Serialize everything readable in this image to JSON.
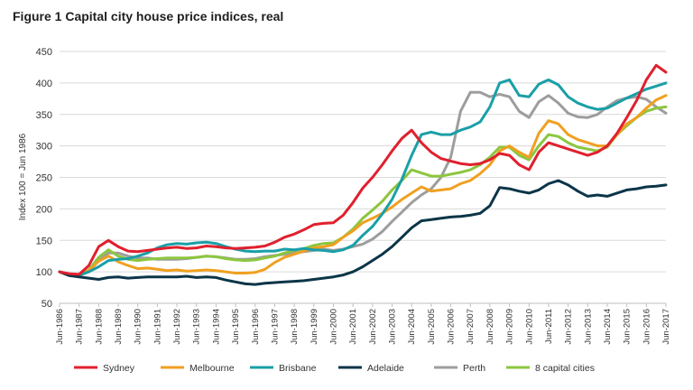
{
  "chart_data": {
    "type": "line",
    "title": "Figure 1 Capital city house price indices, real",
    "ylabel": "Index 100 = Jun 1986",
    "xlabel": "",
    "ylim": [
      50,
      450
    ],
    "yticks": [
      50,
      100,
      150,
      200,
      250,
      300,
      350,
      400,
      450
    ],
    "grid": true,
    "legend_position": "bottom",
    "x_tick_labels": [
      "Jun-1986",
      "Jun-1987",
      "Jun-1988",
      "Jun-1989",
      "Jun-1990",
      "Jun-1991",
      "Jun-1992",
      "Jun-1993",
      "Jun-1994",
      "Jun-1995",
      "Jun-1996",
      "Jun-1997",
      "Jun-1998",
      "Jun-1999",
      "Jun-2000",
      "Jun-2001",
      "Jun-2002",
      "Jun-2003",
      "Jun-2004",
      "Jun-2005",
      "Jun-2006",
      "Jun-2007",
      "Jun-2008",
      "Jun-2009",
      "Jun-2010",
      "Jun-2011",
      "Jun-2012",
      "Jun-2013",
      "Jun-2014",
      "Jun-2015",
      "Jun-2016",
      "Jun-2017"
    ],
    "x": [
      1986.5,
      1987,
      1987.5,
      1988,
      1988.5,
      1989,
      1989.5,
      1990,
      1990.5,
      1991,
      1991.5,
      1992,
      1992.5,
      1993,
      1993.5,
      1994,
      1994.5,
      1995,
      1995.5,
      1996,
      1996.5,
      1997,
      1997.5,
      1998,
      1998.5,
      1999,
      1999.5,
      2000,
      2000.5,
      2001,
      2001.5,
      2002,
      2002.5,
      2003,
      2003.5,
      2004,
      2004.5,
      2005,
      2005.5,
      2006,
      2006.5,
      2007,
      2007.5,
      2008,
      2008.5,
      2009,
      2009.5,
      2010,
      2010.5,
      2011,
      2011.5,
      2012,
      2012.5,
      2013,
      2013.5,
      2014,
      2014.5,
      2015,
      2015.5,
      2016,
      2016.5,
      2017,
      2017.5
    ],
    "series": [
      {
        "name": "Sydney",
        "color": "#e0202e",
        "values": [
          100,
          97,
          96,
          110,
          140,
          150,
          140,
          133,
          132,
          134,
          136,
          138,
          139,
          137,
          138,
          141,
          140,
          138,
          137,
          138,
          139,
          141,
          147,
          155,
          160,
          167,
          175,
          177,
          178,
          190,
          210,
          233,
          250,
          270,
          292,
          312,
          325,
          305,
          290,
          280,
          276,
          272,
          270,
          272,
          278,
          288,
          285,
          270,
          262,
          290,
          305,
          300,
          295,
          290,
          285,
          290,
          300,
          320,
          345,
          372,
          405,
          428,
          417
        ]
      },
      {
        "name": "Melbourne",
        "color": "#f0a020",
        "values": [
          100,
          96,
          96,
          102,
          117,
          125,
          116,
          110,
          105,
          106,
          104,
          102,
          103,
          101,
          102,
          103,
          102,
          100,
          98,
          98,
          99,
          104,
          115,
          123,
          128,
          133,
          138,
          140,
          143,
          155,
          165,
          178,
          185,
          193,
          203,
          215,
          225,
          235,
          228,
          230,
          232,
          240,
          245,
          256,
          270,
          292,
          300,
          290,
          282,
          320,
          340,
          335,
          318,
          310,
          305,
          300,
          300,
          318,
          335,
          345,
          360,
          373,
          380
        ]
      },
      {
        "name": "Brisbane",
        "color": "#1a9fa7",
        "values": [
          100,
          96,
          95,
          100,
          108,
          118,
          120,
          121,
          125,
          130,
          138,
          143,
          145,
          144,
          146,
          147,
          145,
          140,
          136,
          133,
          132,
          133,
          133,
          136,
          135,
          137,
          135,
          134,
          132,
          135,
          142,
          158,
          172,
          192,
          215,
          247,
          285,
          318,
          322,
          318,
          318,
          325,
          330,
          338,
          362,
          400,
          405,
          380,
          378,
          398,
          405,
          397,
          378,
          368,
          362,
          358,
          360,
          368,
          376,
          383,
          390,
          395,
          400
        ]
      },
      {
        "name": "Adelaide",
        "color": "#0c3548",
        "values": [
          100,
          94,
          92,
          90,
          88,
          91,
          92,
          90,
          91,
          92,
          92,
          92,
          92,
          93,
          91,
          92,
          91,
          87,
          84,
          81,
          80,
          82,
          83,
          84,
          85,
          86,
          88,
          90,
          92,
          95,
          100,
          108,
          118,
          128,
          140,
          155,
          170,
          181,
          183,
          185,
          187,
          188,
          190,
          193,
          205,
          234,
          232,
          228,
          225,
          230,
          240,
          245,
          238,
          228,
          220,
          222,
          220,
          225,
          230,
          232,
          235,
          236,
          238
        ]
      },
      {
        "name": "Perth",
        "color": "#9d9d9d",
        "values": [
          100,
          96,
          94,
          100,
          118,
          130,
          130,
          125,
          122,
          122,
          120,
          120,
          120,
          121,
          123,
          125,
          124,
          122,
          120,
          120,
          121,
          124,
          126,
          128,
          130,
          132,
          134,
          136,
          134,
          136,
          140,
          144,
          152,
          164,
          180,
          195,
          210,
          222,
          232,
          250,
          282,
          355,
          385,
          385,
          378,
          382,
          378,
          355,
          345,
          370,
          380,
          368,
          352,
          346,
          345,
          350,
          362,
          372,
          376,
          378,
          374,
          362,
          352
        ]
      },
      {
        "name": "8 capital cities",
        "color": "#8cc63f",
        "values": [
          100,
          96,
          95,
          103,
          123,
          135,
          125,
          120,
          118,
          120,
          121,
          122,
          122,
          122,
          123,
          125,
          124,
          121,
          119,
          118,
          119,
          122,
          125,
          130,
          134,
          137,
          142,
          145,
          146,
          155,
          168,
          185,
          198,
          212,
          230,
          245,
          262,
          257,
          252,
          252,
          255,
          258,
          262,
          270,
          282,
          298,
          298,
          285,
          278,
          300,
          318,
          315,
          305,
          298,
          295,
          292,
          298,
          318,
          332,
          345,
          355,
          360,
          362
        ]
      }
    ]
  }
}
